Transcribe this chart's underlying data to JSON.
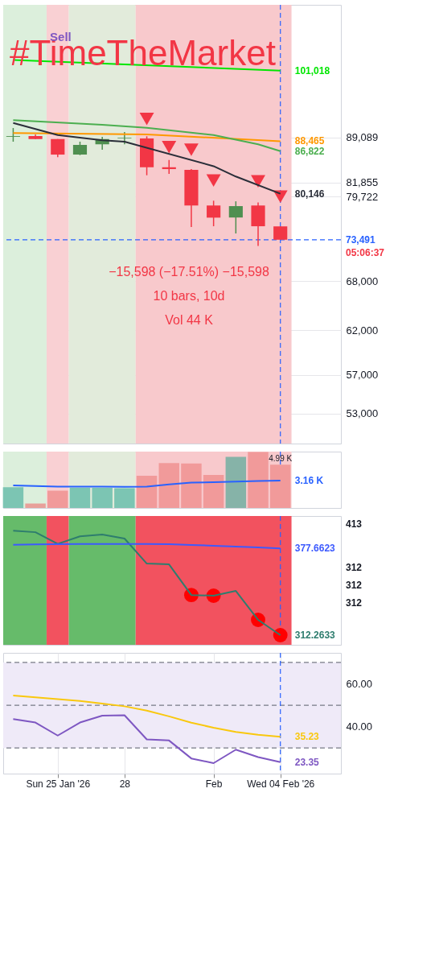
{
  "chart_data": [
    {
      "type": "candlestick",
      "x": [
        "2026-01-23",
        "2026-01-24",
        "2026-01-25",
        "2026-01-26",
        "2026-01-27",
        "2026-01-28",
        "2026-01-29",
        "2026-01-30",
        "2026-01-31",
        "2026-02-01",
        "2026-02-02",
        "2026-02-03",
        "2026-02-04"
      ],
      "ohlc": [
        [
          89200,
          90680,
          88380,
          89320
        ],
        [
          89320,
          89590,
          88820,
          88820
        ],
        [
          88820,
          88820,
          85830,
          86260
        ],
        [
          86260,
          88380,
          86170,
          87840
        ],
        [
          87940,
          89180,
          87050,
          88820
        ],
        [
          88950,
          90000,
          87940,
          89050
        ],
        [
          88920,
          89280,
          82970,
          84230
        ],
        [
          84230,
          85400,
          83200,
          83940
        ],
        [
          83820,
          83940,
          75260,
          78380
        ],
        [
          78380,
          79090,
          75380,
          76610
        ],
        [
          76630,
          79000,
          74360,
          78290
        ],
        [
          78380,
          78830,
          72650,
          75380
        ],
        [
          75360,
          75360,
          73491,
          73491
        ]
      ],
      "colors": [
        "#4f8f50",
        "#f23645",
        "#f23645",
        "#4f8f50",
        "#4f8f50",
        "#4f8f50",
        "#f23645",
        "#f23645",
        "#f23645",
        "#f23645",
        "#4f8f50",
        "#f23645",
        "#f23645"
      ],
      "series": [
        {
          "type": "line",
          "color": "#00e600",
          "x": [
            "2026-01-23",
            "2026-02-04"
          ],
          "values": [
            103070,
            101018
          ],
          "value_labels": [
            null,
            "101,018"
          ]
        },
        {
          "type": "line",
          "color": "#ff9800",
          "x": [
            "2026-01-23",
            "2026-01-29",
            "2026-02-04"
          ],
          "values": [
            89820,
            89590,
            88465
          ],
          "value_labels": [
            null,
            null,
            "88,465"
          ]
        },
        {
          "type": "line",
          "color": "#4caf50",
          "x": [
            "2026-01-23",
            "2026-01-27",
            "2026-01-29",
            "2026-02-01",
            "2026-02-03",
            "2026-02-04"
          ],
          "values": [
            92030,
            91240,
            90730,
            89500,
            87940,
            86822
          ],
          "value_labels": [
            null,
            null,
            null,
            null,
            null,
            "86,822"
          ]
        },
        {
          "type": "line",
          "color": "#2a2e39",
          "x": [
            "2026-01-23",
            "2026-01-25",
            "2026-01-27",
            "2026-01-28",
            "2026-02-01",
            "2026-02-02",
            "2026-02-04"
          ],
          "values": [
            91560,
            89500,
            88610,
            88380,
            84400,
            82770,
            80146
          ],
          "value_labels": [
            null,
            null,
            null,
            null,
            null,
            null,
            "80,146"
          ]
        },
        {
          "type": "scatter",
          "marker": "triangle",
          "color": "#f23645",
          "x": [
            "2026-01-29",
            "2026-01-30",
            "2026-01-31",
            "2026-02-01",
            "2026-02-03",
            "2026-02-04"
          ],
          "values": [
            92250,
            87490,
            87040,
            82150,
            82020,
            79690
          ]
        }
      ],
      "log": true,
      "ylim": [
        50080,
        114340
      ],
      "yticks": [
        {
          "value": 53000,
          "label": "53,000"
        },
        {
          "value": 57000,
          "label": "57,000"
        },
        {
          "value": 62000,
          "label": "62,000"
        },
        {
          "value": 68000,
          "label": "68,000"
        },
        {
          "value": 79722,
          "label": "79,722"
        },
        {
          "value": 81855,
          "label": "81,855"
        },
        {
          "value": 89089,
          "label": "89,089"
        }
      ],
      "xlim": [
        "2026-01-22T13:15",
        "2026-02-06T17:15"
      ],
      "tick_labels": "y",
      "grid": "y",
      "bands": [
        {
          "axis": "x",
          "from": "2026-01-22T13:15",
          "to": "2026-01-24T12:00",
          "color": "#dcefdc",
          "label": null
        },
        {
          "axis": "x",
          "from": "2026-01-24T12:00",
          "to": "2026-01-25T12:00",
          "color": "#f9d0d3",
          "label": null
        },
        {
          "axis": "x",
          "from": "2026-01-25T12:00",
          "to": "2026-01-28T12:00",
          "color": "#e2ebdb",
          "label": null
        },
        {
          "axis": "x",
          "from": "2026-01-28T12:00",
          "to": "2026-02-04T12:00",
          "color": "#f8c9cc",
          "label": null
        }
      ],
      "ref_lines": [
        {
          "axis": "y",
          "value": 73491,
          "label": "73,491",
          "color": "#2962ff",
          "line_style": "dashed"
        },
        {
          "axis": "x",
          "value": "2026-02-04",
          "label": null,
          "color": "#2962ff",
          "line_style": "dashed"
        }
      ],
      "annotations": [
        "#TimeTheMarket",
        "Sell",
        "−15,598 (−17.51%) −15,598",
        "10 bars, 10d",
        "Vol 44 K",
        "05:06:37"
      ]
    },
    {
      "type": "bar",
      "ylim": [
        0,
        6.5
      ],
      "x": [
        "2026-01-23",
        "2026-01-24",
        "2026-01-25",
        "2026-01-26",
        "2026-01-27",
        "2026-01-28",
        "2026-01-29",
        "2026-01-30",
        "2026-01-31",
        "2026-02-01",
        "2026-02-02",
        "2026-02-03",
        "2026-02-04"
      ],
      "xlim": [
        "2026-01-22T13:15",
        "2026-02-06T17:15"
      ],
      "tick_labels": false,
      "series": [
        {
          "type": "bar",
          "values": [
            2.38,
            0.52,
            2.0,
            2.33,
            2.33,
            2.28,
            3.71,
            5.18,
            5.13,
            3.8,
            5.89,
            6.46,
            4.99
          ],
          "colors": [
            "#7cc5b3",
            "#e8a09a",
            "#f19a9a",
            "#7cc5b3",
            "#7cc5b3",
            "#7cc5b3",
            "#f19a9a",
            "#f19a9a",
            "#f19a9a",
            "#f19a9a",
            "#86b3a8",
            "#f19a9a",
            "#f19a9a"
          ],
          "value_labels": [
            null,
            null,
            null,
            null,
            null,
            null,
            null,
            null,
            null,
            null,
            null,
            null,
            "4.99 K"
          ]
        },
        {
          "type": "line",
          "color": "#2962ff",
          "values": [
            2.59,
            2.53,
            2.46,
            2.46,
            2.46,
            2.43,
            2.46,
            2.72,
            2.92,
            2.98,
            3.05,
            3.11,
            3.16
          ],
          "value_labels": [
            null,
            null,
            null,
            null,
            null,
            null,
            null,
            null,
            null,
            null,
            null,
            null,
            "3.16 K"
          ]
        }
      ],
      "bands": [
        {
          "axis": "x",
          "from": "2026-01-22T13:15",
          "to": "2026-01-24T12:00",
          "color": "#dcefdc",
          "label": null
        },
        {
          "axis": "x",
          "from": "2026-01-24T12:00",
          "to": "2026-01-25T12:00",
          "color": "#f9d0d3",
          "label": null
        },
        {
          "axis": "x",
          "from": "2026-01-25T12:00",
          "to": "2026-01-28T12:00",
          "color": "#e2ebdb",
          "label": null
        },
        {
          "axis": "x",
          "from": "2026-01-28T12:00",
          "to": "2026-02-04T12:00",
          "color": "#f8c9cc",
          "label": null
        }
      ],
      "ref_lines": [
        {
          "axis": "x",
          "value": "2026-02-04",
          "label": null,
          "color": "#2962ff",
          "line_style": "dashed"
        }
      ]
    },
    {
      "type": "line",
      "x": [
        "2026-01-23",
        "2026-01-24",
        "2026-01-25",
        "2026-01-26",
        "2026-01-27",
        "2026-01-28",
        "2026-01-29",
        "2026-01-30",
        "2026-01-31",
        "2026-02-01",
        "2026-02-02",
        "2026-02-03",
        "2026-02-04"
      ],
      "xlim": [
        "2026-01-22T13:15",
        "2026-02-06T17:15"
      ],
      "ylim": [
        305,
        402
      ],
      "tick_labels": false,
      "series": [
        {
          "type": "line",
          "color": "#2e7d6e",
          "values": [
            391,
            389.8,
            381,
            386.7,
            388.1,
            385,
            366.2,
            365.6,
            342.5,
            342,
            345.6,
            323.8,
            312.2633
          ],
          "value_labels": [
            null,
            null,
            null,
            null,
            null,
            null,
            null,
            null,
            null,
            null,
            null,
            null,
            "312.2633"
          ]
        },
        {
          "type": "line",
          "color": "#3d5afe",
          "values": [
            380.4,
            380.6,
            380.8,
            380.9,
            381,
            381,
            381,
            380.8,
            380.2,
            379.6,
            379,
            378.3,
            377.6623
          ],
          "value_labels": [
            null,
            null,
            null,
            null,
            null,
            null,
            null,
            null,
            null,
            null,
            null,
            null,
            "377.6623"
          ]
        },
        {
          "type": "scatter",
          "marker": "circle",
          "color": "#ff0000",
          "x": [
            "2026-01-31",
            "2026-02-01",
            "2026-02-03",
            "2026-02-04"
          ],
          "values": [
            342.5,
            342,
            323.8,
            312.2633
          ]
        }
      ],
      "bands": [
        {
          "axis": "x",
          "from": "2026-01-22T13:15",
          "to": "2026-01-24T12:00",
          "color": "#66bb6a",
          "label": null
        },
        {
          "axis": "x",
          "from": "2026-01-24T12:00",
          "to": "2026-01-25T12:00",
          "color": "#f2525f",
          "label": null
        },
        {
          "axis": "x",
          "from": "2026-01-25T12:00",
          "to": "2026-01-28T12:00",
          "color": "#66bb6a",
          "label": null
        },
        {
          "axis": "x",
          "from": "2026-01-28T12:00",
          "to": "2026-02-04T12:00",
          "color": "#f2525f",
          "label": null
        }
      ],
      "ref_lines": [
        {
          "axis": "x",
          "value": "2026-02-04",
          "label": null,
          "color": "#2962ff",
          "line_style": "dashed"
        }
      ],
      "annotations": [
        "413",
        "312",
        "312",
        "312"
      ]
    },
    {
      "type": "line",
      "x": [
        "2026-01-23",
        "2026-01-24",
        "2026-01-25",
        "2026-01-26",
        "2026-01-27",
        "2026-01-28",
        "2026-01-29",
        "2026-01-30",
        "2026-01-31",
        "2026-02-01",
        "2026-02-02",
        "2026-02-03",
        "2026-02-04"
      ],
      "xlim": [
        "2026-01-22T13:15",
        "2026-02-06T17:15"
      ],
      "ylim": [
        18,
        74.5
      ],
      "yticks": [
        {
          "value": 40,
          "label": "40.00"
        },
        {
          "value": 60,
          "label": "60.00"
        }
      ],
      "xticks": [
        {
          "value": "2026-01-25",
          "label": "Sun 25 Jan '26"
        },
        {
          "value": "2026-01-28",
          "label": "28"
        },
        {
          "value": "2026-02-01",
          "label": "Feb"
        },
        {
          "value": "2026-02-04",
          "label": "Wed 04 Feb '26"
        }
      ],
      "grid": "x",
      "series": [
        {
          "type": "line",
          "color": "#7e57c2",
          "values": [
            43.5,
            41.9,
            35.8,
            41.9,
            45.1,
            45.3,
            34.0,
            33.5,
            25.1,
            22.9,
            29.2,
            25.7,
            23.35
          ],
          "value_labels": [
            null,
            null,
            null,
            null,
            null,
            null,
            null,
            null,
            null,
            null,
            null,
            null,
            "23.35"
          ]
        },
        {
          "type": "line",
          "color": "#f9c80e",
          "values": [
            54.5,
            53.7,
            52.8,
            52,
            50.8,
            49.5,
            47.5,
            44.8,
            41.8,
            39.5,
            37.5,
            36.2,
            35.23
          ],
          "value_labels": [
            null,
            null,
            null,
            null,
            null,
            null,
            null,
            null,
            null,
            null,
            null,
            null,
            "35.23"
          ]
        }
      ],
      "bands": [
        {
          "axis": "y",
          "from": 30,
          "to": 70,
          "color": "#efeaf8",
          "label": null
        }
      ],
      "ref_lines": [
        {
          "axis": "y",
          "value": 70,
          "label": null,
          "color": "#787b86",
          "line_style": "dashed"
        },
        {
          "axis": "y",
          "value": 50,
          "label": null,
          "color": "#787b86",
          "line_style": "dashed"
        },
        {
          "axis": "y",
          "value": 30,
          "label": null,
          "color": "#787b86",
          "line_style": "dashed"
        },
        {
          "axis": "x",
          "value": "2026-02-04",
          "label": null,
          "color": "#2962ff",
          "line_style": "dashed"
        }
      ]
    }
  ]
}
